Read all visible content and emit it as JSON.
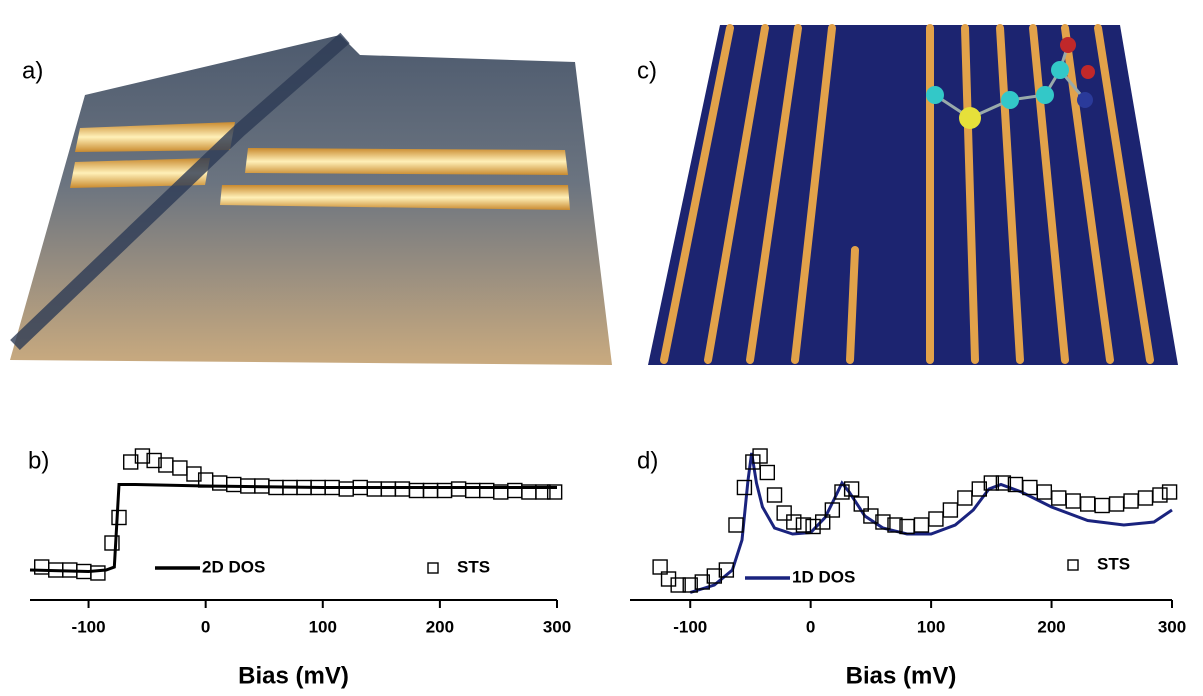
{
  "panels": [
    {
      "label": "a)"
    },
    {
      "label": "c)"
    }
  ],
  "chart_data": [
    {
      "type": "line",
      "panel_label": "b)",
      "x_label": "Bias (mV)",
      "xlim": [
        -150,
        300
      ],
      "xticks": [
        -100,
        0,
        100,
        200,
        300
      ],
      "ylim": [
        0,
        1
      ],
      "series": [
        {
          "name": "2D DOS",
          "color": "#000000",
          "marker": "none",
          "x": [
            -150,
            -100,
            -85,
            -78,
            -74,
            -60,
            0,
            100,
            200,
            300
          ],
          "values": [
            0.2,
            0.19,
            0.2,
            0.22,
            0.77,
            0.77,
            0.76,
            0.75,
            0.75,
            0.75
          ]
        },
        {
          "name": "STS",
          "color": "#000000",
          "marker": "square",
          "x": [
            -140,
            -128,
            -116,
            -104,
            -92,
            -80,
            -74,
            -64,
            -54,
            -44,
            -34,
            -22,
            -10,
            0,
            12,
            24,
            36,
            48,
            60,
            72,
            84,
            96,
            108,
            120,
            132,
            144,
            156,
            168,
            180,
            192,
            204,
            216,
            228,
            240,
            252,
            264,
            276,
            288,
            298
          ],
          "values": [
            0.22,
            0.2,
            0.2,
            0.19,
            0.18,
            0.38,
            0.55,
            0.92,
            0.96,
            0.93,
            0.9,
            0.88,
            0.84,
            0.8,
            0.78,
            0.77,
            0.76,
            0.76,
            0.75,
            0.75,
            0.75,
            0.75,
            0.75,
            0.74,
            0.75,
            0.74,
            0.74,
            0.74,
            0.73,
            0.73,
            0.73,
            0.74,
            0.73,
            0.73,
            0.72,
            0.73,
            0.72,
            0.72,
            0.72
          ]
        }
      ]
    },
    {
      "type": "line",
      "panel_label": "d)",
      "x_label": "Bias (mV)",
      "xlim": [
        -150,
        300
      ],
      "xticks": [
        -100,
        0,
        100,
        200,
        300
      ],
      "ylim": [
        0,
        1
      ],
      "series": [
        {
          "name": "1D DOS",
          "color": "#1a237e",
          "marker": "none",
          "x": [
            -100,
            -80,
            -65,
            -57,
            -52,
            -49,
            -45,
            -40,
            -30,
            -15,
            0,
            12,
            20,
            26,
            32,
            45,
            60,
            80,
            100,
            120,
            135,
            148,
            158,
            175,
            200,
            230,
            260,
            285,
            300
          ],
          "values": [
            0.05,
            0.1,
            0.2,
            0.4,
            0.8,
            0.98,
            0.78,
            0.62,
            0.48,
            0.44,
            0.45,
            0.55,
            0.68,
            0.78,
            0.72,
            0.56,
            0.48,
            0.44,
            0.44,
            0.5,
            0.6,
            0.74,
            0.77,
            0.72,
            0.62,
            0.53,
            0.5,
            0.52,
            0.6
          ]
        },
        {
          "name": "STS",
          "color": "#000000",
          "marker": "square",
          "x": [
            -125,
            -118,
            -110,
            -100,
            -90,
            -80,
            -70,
            -62,
            -55,
            -48,
            -42,
            -36,
            -30,
            -22,
            -14,
            -6,
            2,
            10,
            18,
            26,
            34,
            42,
            50,
            60,
            70,
            80,
            92,
            104,
            116,
            128,
            140,
            150,
            160,
            170,
            182,
            194,
            206,
            218,
            230,
            242,
            254,
            266,
            278,
            290,
            298
          ],
          "values": [
            0.22,
            0.14,
            0.1,
            0.1,
            0.12,
            0.16,
            0.2,
            0.5,
            0.75,
            0.92,
            0.96,
            0.85,
            0.7,
            0.58,
            0.52,
            0.5,
            0.49,
            0.52,
            0.6,
            0.72,
            0.74,
            0.64,
            0.56,
            0.52,
            0.5,
            0.49,
            0.5,
            0.54,
            0.6,
            0.68,
            0.74,
            0.78,
            0.78,
            0.77,
            0.75,
            0.72,
            0.68,
            0.66,
            0.64,
            0.63,
            0.64,
            0.66,
            0.68,
            0.7,
            0.72
          ]
        }
      ]
    }
  ]
}
